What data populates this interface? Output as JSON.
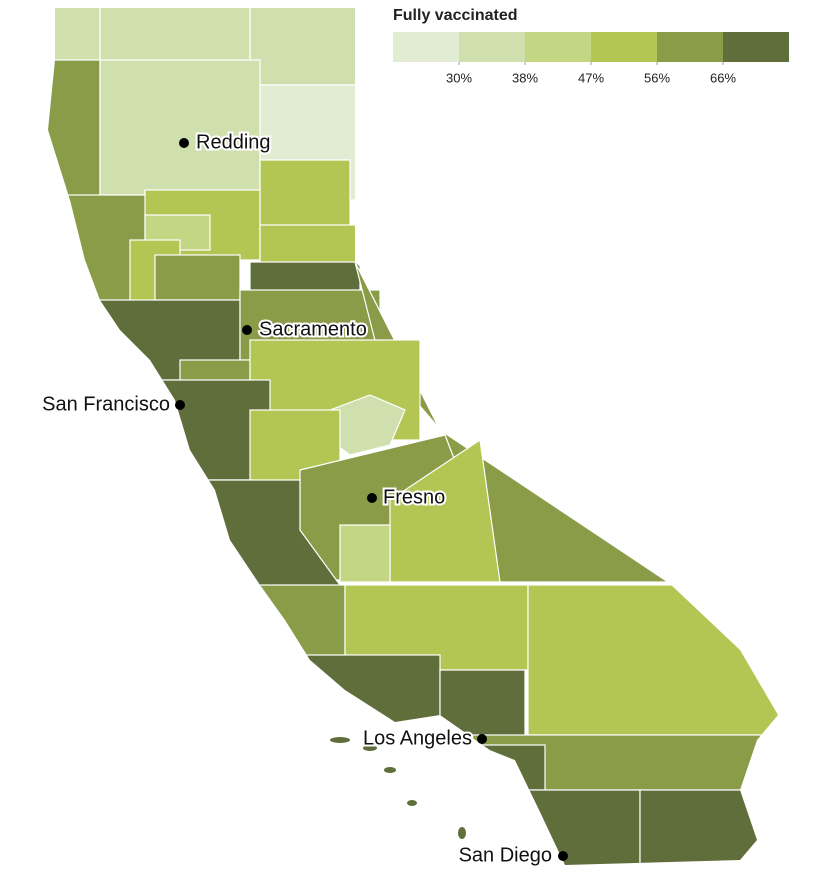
{
  "legend": {
    "title": "Fully vaccinated",
    "colors": [
      "#e2ecd2",
      "#d0dfae",
      "#c2d684",
      "#b3c653",
      "#8b9c49",
      "#5f6e3b"
    ],
    "ticks": [
      {
        "value": 30,
        "label": "30%"
      },
      {
        "value": 38,
        "label": "38%"
      },
      {
        "value": 47,
        "label": "47%"
      },
      {
        "value": 56,
        "label": "56%"
      },
      {
        "value": 66,
        "label": "66%"
      }
    ]
  },
  "cities": [
    {
      "label": "Redding"
    },
    {
      "label": "Sacramento"
    },
    {
      "label": "San Francisco"
    },
    {
      "label": "Fresno"
    },
    {
      "label": "Los Angeles"
    },
    {
      "label": "San Diego"
    }
  ]
}
